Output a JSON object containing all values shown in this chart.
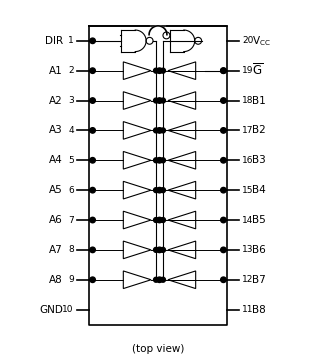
{
  "title": "(top view)",
  "left_pins": [
    "DIR",
    "A1",
    "A2",
    "A3",
    "A4",
    "A5",
    "A6",
    "A7",
    "A8",
    "GND"
  ],
  "left_nums": [
    1,
    2,
    3,
    4,
    5,
    6,
    7,
    8,
    9,
    10
  ],
  "right_pins": [
    "V_CC",
    "G_bar",
    "B1",
    "B2",
    "B3",
    "B4",
    "B5",
    "B6",
    "B7",
    "B8"
  ],
  "right_nums": [
    20,
    19,
    18,
    17,
    16,
    15,
    14,
    13,
    12,
    11
  ],
  "bg_color": "#ffffff",
  "line_color": "#000000"
}
